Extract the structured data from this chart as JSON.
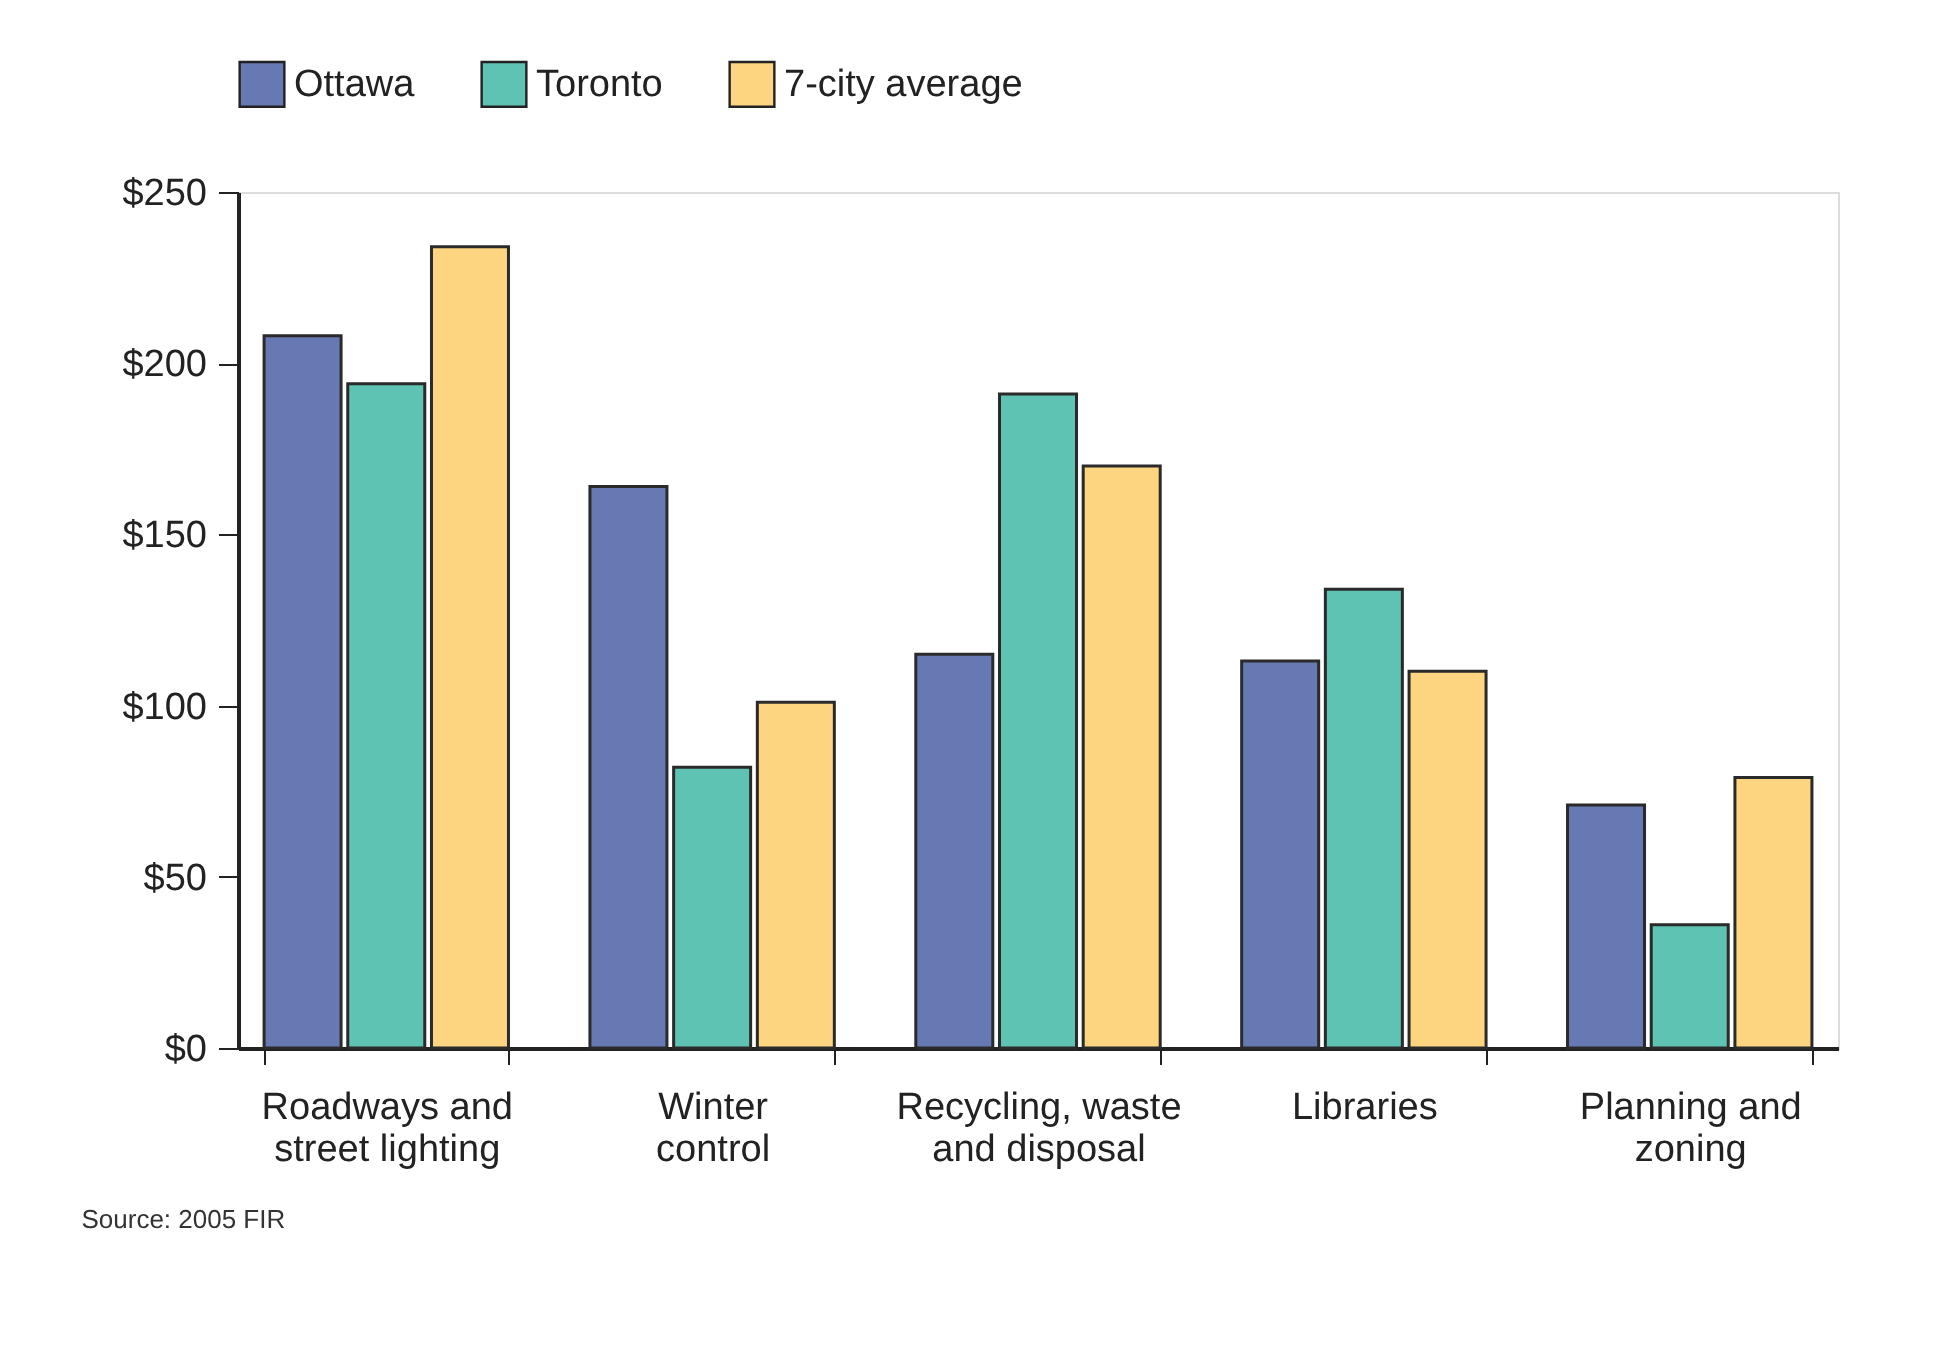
{
  "chart_data": {
    "type": "bar",
    "categories": [
      "Roadways and\nstreet lighting",
      "Winter\ncontrol",
      "Recycling, waste\nand disposal",
      "Libraries",
      "Planning and\nzoning"
    ],
    "series": [
      {
        "name": "Ottawa",
        "color": "#6679b2",
        "values": [
          208,
          164,
          115,
          113,
          71
        ]
      },
      {
        "name": "Toronto",
        "color": "#5ec3b3",
        "values": [
          194,
          82,
          191,
          134,
          36
        ]
      },
      {
        "name": "7-city average",
        "color": "#fdd580",
        "values": [
          234,
          101,
          170,
          110,
          79
        ]
      }
    ],
    "ylim": [
      0,
      250
    ],
    "yticks": [
      {
        "value": 0,
        "label": "$0"
      },
      {
        "value": 50,
        "label": "$50"
      },
      {
        "value": 100,
        "label": "$100"
      },
      {
        "value": 150,
        "label": "$150"
      },
      {
        "value": 200,
        "label": "$200"
      },
      {
        "value": 250,
        "label": "$250"
      }
    ],
    "grid": false,
    "legend": "top left",
    "annotations": [
      "Source: 2005 FIR"
    ]
  }
}
